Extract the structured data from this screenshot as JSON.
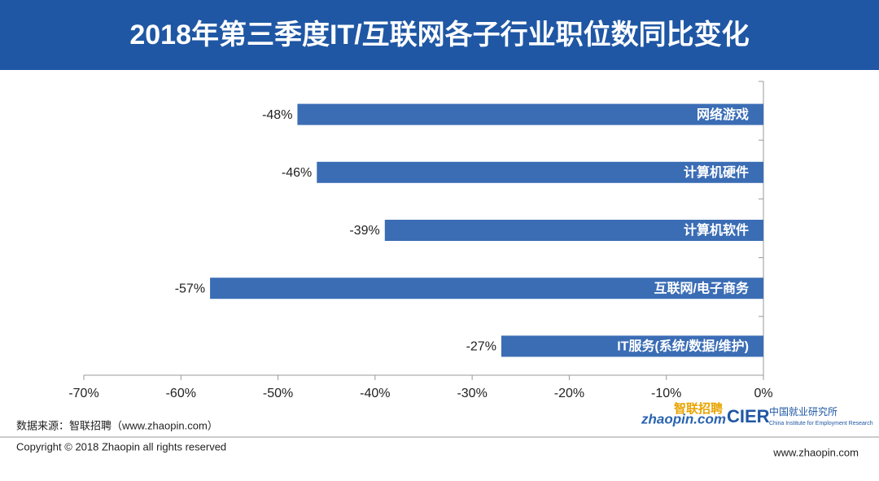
{
  "header": {
    "title": "2018年第三季度IT/互联网各子行业职位数同比变化"
  },
  "chart_data": {
    "type": "hbar",
    "categories": [
      "网络游戏",
      "计算机硬件",
      "计算机软件",
      "互联网/电子商务",
      "IT服务(系统/数据/维护)"
    ],
    "values": [
      -48,
      -46,
      -39,
      -57,
      -27
    ],
    "value_labels": [
      "-48%",
      "-46%",
      "-39%",
      "-57%",
      "-27%"
    ],
    "color": "#3b6db5",
    "xlim": [
      -70,
      0
    ],
    "xticks": [
      {
        "value": -70,
        "label": "-70%"
      },
      {
        "value": -60,
        "label": "-60%"
      },
      {
        "value": -50,
        "label": "-50%"
      },
      {
        "value": -40,
        "label": "-40%"
      },
      {
        "value": -30,
        "label": "-30%"
      },
      {
        "value": -20,
        "label": "-20%"
      },
      {
        "value": -10,
        "label": "-10%"
      },
      {
        "value": 0,
        "label": "0%"
      }
    ]
  },
  "footer": {
    "source": "数据来源：智联招聘（www.zhaopin.com）",
    "copyright": "Copyright © 2018 Zhaopin all rights reserved",
    "website": "www.zhaopin.com",
    "logo_cn": "智联招聘",
    "logo_en": "zhaopin.com",
    "cier": "CIER",
    "cier_cn": "中国就业研究所",
    "cier_en": "China Institute for Employment Research"
  }
}
